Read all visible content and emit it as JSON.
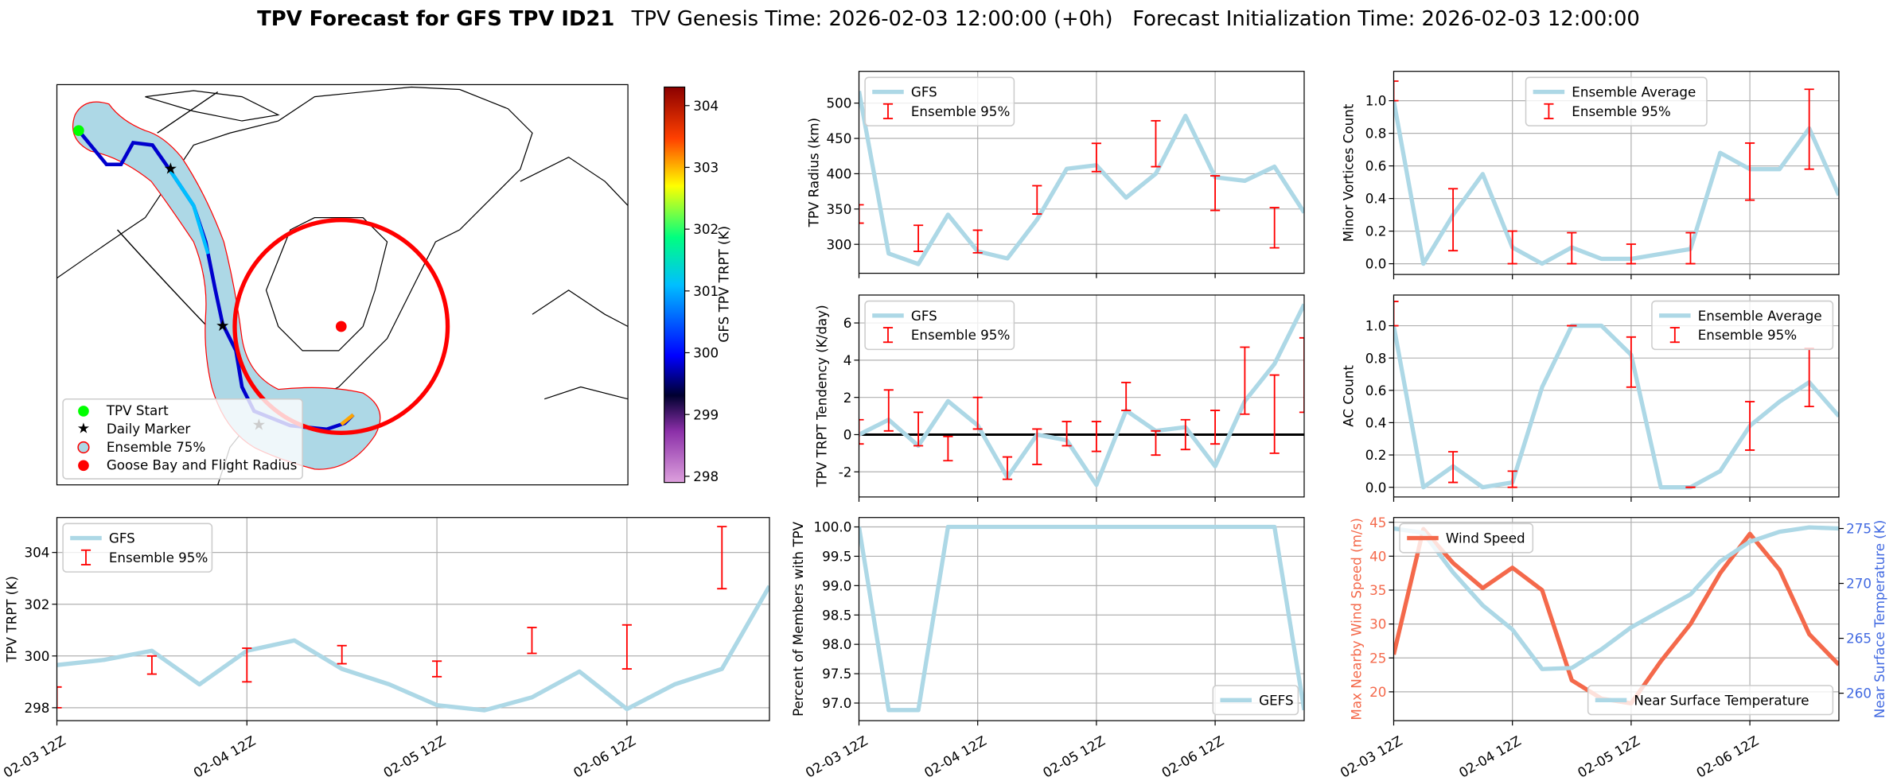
{
  "title": "TPV Forecast for GFS TPV ID21",
  "subtitle": "TPV Genesis Time: 2026-02-03 12:00:00 (+0h)   Forecast Initialization Time: 2026-02-03 12:00:00",
  "map": {
    "legend": [
      "TPV Start",
      "Daily Marker",
      "Ensemble 75%",
      "Goose Bay and Flight Radius"
    ],
    "colorbar": {
      "label": "GFS TPV TRPT (K)",
      "lim": [
        297.9,
        304.3
      ],
      "ticks": [
        298,
        299,
        300,
        301,
        302,
        303,
        304
      ]
    }
  },
  "chart_data": [
    {
      "type": "line",
      "ylabel": "TPV Radius (km)",
      "x": [
        0,
        6,
        12,
        18,
        24,
        30,
        36,
        42,
        48,
        54,
        60,
        66,
        72,
        78,
        84,
        90
      ],
      "xlim": [
        0,
        90
      ],
      "xticks": [
        0,
        24,
        48,
        72
      ],
      "ylim": [
        259,
        545
      ],
      "yticks": [
        300,
        350,
        400,
        450,
        500
      ],
      "grid": true,
      "legend": "upper left",
      "series": [
        {
          "name": "GFS",
          "color": "#add8e6",
          "values": [
            517,
            287,
            272,
            342,
            290,
            280,
            335,
            407,
            412,
            366,
            400,
            482,
            395,
            390,
            410,
            345
          ]
        }
      ],
      "errorbars": {
        "name": "Ensemble 95%",
        "color": "#ff0000",
        "low": [
          330,
          null,
          290,
          null,
          288,
          null,
          343,
          null,
          403,
          null,
          410,
          null,
          348,
          null,
          295,
          null
        ],
        "high": [
          356,
          null,
          327,
          null,
          320,
          null,
          383,
          null,
          443,
          null,
          475,
          null,
          397,
          null,
          352,
          null
        ]
      }
    },
    {
      "type": "line",
      "ylabel": "TPV TRPT Tendency (K/day)",
      "x": [
        0,
        6,
        12,
        18,
        24,
        30,
        36,
        42,
        48,
        54,
        60,
        66,
        72,
        78,
        84,
        90
      ],
      "xlim": [
        0,
        90
      ],
      "xticks": [
        0,
        24,
        48,
        72
      ],
      "ylim": [
        -3.35,
        7.5
      ],
      "yticks": [
        -2,
        0,
        2,
        4,
        6
      ],
      "grid": true,
      "legend": "upper left",
      "hline": 0,
      "series": [
        {
          "name": "GFS",
          "color": "#add8e6",
          "values": [
            0,
            0.8,
            -0.6,
            1.8,
            0.5,
            -2.3,
            0,
            -0.3,
            -2.7,
            1.3,
            0.2,
            0.4,
            -1.7,
            1.8,
            3.8,
            7
          ]
        }
      ],
      "errorbars": {
        "name": "Ensemble 95%",
        "color": "#ff0000",
        "low": [
          -0.5,
          0.2,
          -0.6,
          -1.4,
          0.3,
          -2.4,
          -1.6,
          -0.6,
          -0.9,
          1.3,
          -1.1,
          -0.8,
          -0.5,
          1.1,
          -1,
          1.2
        ],
        "high": [
          0.8,
          2.4,
          1.2,
          -0.1,
          2,
          -1.2,
          0.3,
          0.7,
          0.7,
          2.8,
          0.2,
          0.8,
          1.3,
          4.7,
          3.2,
          5.2
        ]
      }
    },
    {
      "type": "line",
      "ylabel": "Percent of Members with TPV",
      "x": [
        0,
        6,
        12,
        18,
        24,
        30,
        36,
        42,
        48,
        54,
        60,
        66,
        72,
        78,
        84,
        90
      ],
      "xlim": [
        0,
        90
      ],
      "xticks": [
        {
          "value": 0,
          "label": "02-03 12Z"
        },
        {
          "value": 24,
          "label": "02-04 12Z"
        },
        {
          "value": 48,
          "label": "02-05 12Z"
        },
        {
          "value": 72,
          "label": "02-06 12Z"
        }
      ],
      "ylim": [
        96.7,
        100.16
      ],
      "yticks": [
        {
          "value": 97,
          "label": "97.0"
        },
        97.5,
        {
          "value": 98,
          "label": "98.0"
        },
        98.5,
        {
          "value": 99,
          "label": "99.0"
        },
        99.5,
        {
          "value": 100,
          "label": "100.0"
        }
      ],
      "grid": true,
      "legend": "lower right",
      "series": [
        {
          "name": "GEFS",
          "color": "#add8e6",
          "values": [
            100,
            96.88,
            96.88,
            100,
            100,
            100,
            100,
            100,
            100,
            100,
            100,
            100,
            100,
            100,
            100,
            96.88
          ]
        }
      ]
    },
    {
      "type": "line",
      "ylabel": "Minor Vortices Count",
      "x": [
        0,
        6,
        12,
        18,
        24,
        30,
        36,
        42,
        48,
        54,
        60,
        66,
        72,
        78,
        84,
        90
      ],
      "xlim": [
        0,
        90
      ],
      "xticks": [
        0,
        24,
        48,
        72
      ],
      "ylim": [
        -0.066,
        1.18
      ],
      "yticks": [
        {
          "value": 0,
          "label": "0.0"
        },
        0.2,
        0.4,
        0.6,
        0.8,
        {
          "value": 1,
          "label": "1.0"
        }
      ],
      "grid": true,
      "legend": "upper center",
      "series": [
        {
          "name": "Ensemble Average",
          "color": "#add8e6",
          "values": [
            1,
            0,
            0.3,
            0.55,
            0.1,
            0,
            0.1,
            0.03,
            0.03,
            0.06,
            0.09,
            0.68,
            0.58,
            0.58,
            0.83,
            0.42
          ]
        }
      ],
      "errorbars": {
        "name": "Ensemble 95%",
        "color": "#ff0000",
        "low": [
          1,
          null,
          0.08,
          null,
          0,
          null,
          0,
          null,
          0,
          null,
          0,
          null,
          0.39,
          null,
          0.58,
          null
        ],
        "high": [
          1.12,
          null,
          0.46,
          null,
          0.2,
          null,
          0.19,
          null,
          0.12,
          null,
          0.19,
          null,
          0.74,
          null,
          1.07,
          null
        ]
      }
    },
    {
      "type": "line",
      "ylabel": "AC Count",
      "x": [
        0,
        6,
        12,
        18,
        24,
        30,
        36,
        42,
        48,
        54,
        60,
        66,
        72,
        78,
        84,
        90
      ],
      "xlim": [
        0,
        90
      ],
      "xticks": [
        0,
        24,
        48,
        72
      ],
      "ylim": [
        -0.06,
        1.19
      ],
      "yticks": [
        {
          "value": 0,
          "label": "0.0"
        },
        0.2,
        0.4,
        0.6,
        0.8,
        {
          "value": 1,
          "label": "1.0"
        }
      ],
      "grid": true,
      "legend": "upper right",
      "series": [
        {
          "name": "Ensemble Average",
          "color": "#add8e6",
          "values": [
            1,
            0,
            0.13,
            0,
            0.03,
            0.62,
            1,
            1,
            0.82,
            0,
            0,
            0.1,
            0.38,
            0.53,
            0.65,
            0.44
          ]
        }
      ],
      "errorbars": {
        "name": "Ensemble 95%",
        "color": "#ff0000",
        "low": [
          1,
          null,
          0.03,
          null,
          0,
          null,
          1,
          null,
          0.62,
          null,
          0,
          null,
          0.23,
          null,
          0.5,
          null
        ],
        "high": [
          1.15,
          null,
          0.22,
          null,
          0.1,
          null,
          1,
          null,
          0.93,
          null,
          0,
          null,
          0.53,
          null,
          0.86,
          null
        ]
      }
    },
    {
      "type": "line",
      "ylabel": "Max Nearby Wind Speed (m/s)",
      "y2label": "Near Surface Temperature (K)",
      "ycolor": "#f4694b",
      "y2color": "#4169e1",
      "x": [
        0,
        6,
        12,
        18,
        24,
        30,
        36,
        42,
        48,
        54,
        60,
        66,
        72,
        78,
        84,
        90
      ],
      "xlim": [
        0,
        90
      ],
      "xticks": [
        {
          "value": 0,
          "label": "02-03 12Z"
        },
        {
          "value": 24,
          "label": "02-04 12Z"
        },
        {
          "value": 48,
          "label": "02-05 12Z"
        },
        {
          "value": 72,
          "label": "02-06 12Z"
        }
      ],
      "ylim": [
        15.75,
        45.7
      ],
      "yticks": [
        20,
        25,
        30,
        35,
        40,
        45
      ],
      "y2lim": [
        257.5,
        276
      ],
      "y2ticks": [
        260,
        265,
        270,
        275
      ],
      "grid": true,
      "legend": "upper left",
      "legend2": "lower right",
      "series": [
        {
          "name": "Wind Speed",
          "color": "#f4694b",
          "values": [
            25.5,
            44,
            39,
            35.3,
            38.3,
            35,
            21.7,
            19,
            18.3,
            24.5,
            30,
            37.5,
            43.3,
            38,
            28.5,
            24
          ]
        },
        {
          "name": "Near Surface Temperature",
          "color": "#add8e6",
          "axis": "y2",
          "values": [
            275,
            274.6,
            271,
            268,
            265.8,
            262.2,
            262.3,
            264,
            266,
            267.5,
            269,
            272,
            273.8,
            274.7,
            275.1,
            275
          ]
        }
      ]
    },
    {
      "type": "line",
      "ylabel": "TPV TRPT (K)",
      "x": [
        0,
        6,
        12,
        18,
        24,
        30,
        36,
        42,
        48,
        54,
        60,
        66,
        72,
        78,
        84,
        90
      ],
      "xlim": [
        0,
        90
      ],
      "xticks": [
        {
          "value": 0,
          "label": "02-03 12Z"
        },
        {
          "value": 24,
          "label": "02-04 12Z"
        },
        {
          "value": 48,
          "label": "02-05 12Z"
        },
        {
          "value": 72,
          "label": "02-06 12Z"
        }
      ],
      "ylim": [
        297.5,
        305.35
      ],
      "yticks": [
        298,
        300,
        302,
        304
      ],
      "grid": true,
      "legend": "upper left",
      "series": [
        {
          "name": "GFS",
          "color": "#add8e6",
          "values": [
            299.65,
            299.85,
            300.2,
            298.9,
            300.2,
            300.6,
            299.5,
            298.9,
            298.1,
            297.9,
            298.4,
            299.4,
            297.95,
            298.9,
            299.5,
            302.7
          ]
        }
      ],
      "errorbars": {
        "name": "Ensemble 95%",
        "color": "#ff0000",
        "low": [
          298,
          null,
          299.3,
          null,
          299,
          null,
          299.7,
          null,
          299.2,
          null,
          300.1,
          null,
          299.5,
          null,
          302.6,
          null
        ],
        "high": [
          298.8,
          null,
          300,
          null,
          300.3,
          null,
          300.4,
          null,
          299.8,
          null,
          301.1,
          null,
          301.2,
          null,
          305,
          null
        ]
      }
    }
  ]
}
